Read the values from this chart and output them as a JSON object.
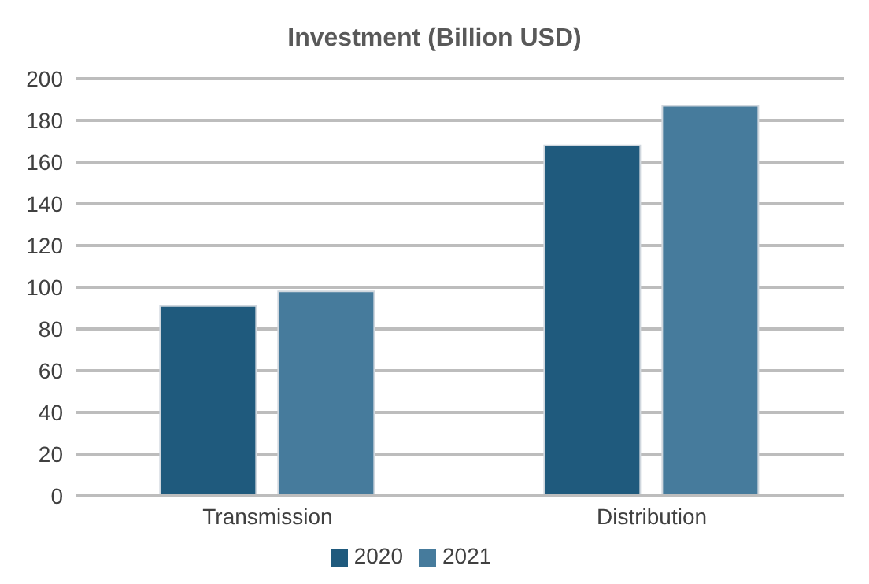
{
  "chart_data": {
    "type": "bar",
    "title": "Investment (Billion USD)",
    "categories": [
      "Transmission",
      "Distribution"
    ],
    "series": [
      {
        "name": "2020",
        "color": "#1f5a7d",
        "values": [
          91,
          168
        ]
      },
      {
        "name": "2021",
        "color": "#467b9c",
        "values": [
          98,
          187
        ]
      }
    ],
    "ylim": [
      0,
      200
    ],
    "yticks": [
      0,
      20,
      40,
      60,
      80,
      100,
      120,
      140,
      160,
      180,
      200
    ],
    "grid": "y",
    "legend": "bottom"
  }
}
